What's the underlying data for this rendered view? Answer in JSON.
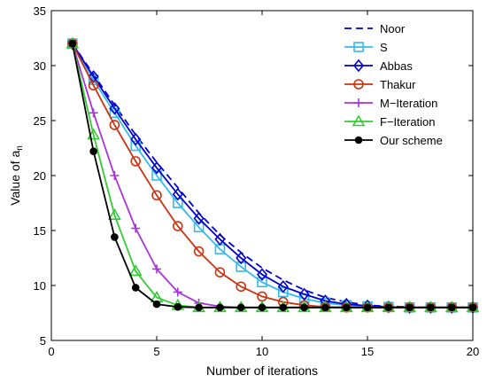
{
  "chart_data": {
    "type": "line",
    "xlabel": "Number of iterations",
    "ylabel_main": "Value of a",
    "ylabel_sub": "n",
    "xlim": [
      0,
      20
    ],
    "ylim": [
      5,
      35
    ],
    "xticks": [
      0,
      5,
      10,
      15,
      20
    ],
    "yticks": [
      5,
      10,
      15,
      20,
      25,
      30,
      35
    ],
    "legend_position": "top-right",
    "grid": false,
    "series": [
      {
        "name": "Noor",
        "color": "#0000e0",
        "dash": "8,5",
        "marker": "none",
        "x": [
          1,
          2,
          3,
          4,
          5,
          6,
          7,
          8,
          9,
          10,
          11,
          12,
          13,
          14,
          15,
          16,
          17,
          18,
          19,
          20
        ],
        "y": [
          32.0,
          29.2,
          26.4,
          23.7,
          21.2,
          18.9,
          16.6,
          14.6,
          13.0,
          11.6,
          10.5,
          9.6,
          8.9,
          8.5,
          8.2,
          8.1,
          8.05,
          8.0,
          8.0,
          8.0
        ]
      },
      {
        "name": "S",
        "color": "#33bbee",
        "dash": "",
        "marker": "square",
        "x": [
          1,
          2,
          3,
          4,
          5,
          6,
          7,
          8,
          9,
          10,
          11,
          12,
          13,
          14,
          15,
          16,
          17,
          18,
          19,
          20
        ],
        "y": [
          32.0,
          28.7,
          25.7,
          22.7,
          20.0,
          17.5,
          15.3,
          13.3,
          11.7,
          10.3,
          9.4,
          8.8,
          8.4,
          8.2,
          8.1,
          8.05,
          8.0,
          8.0,
          8.0,
          8.0
        ]
      },
      {
        "name": "Abbas",
        "color": "#0000cc",
        "dash": "",
        "marker": "diamond",
        "x": [
          1,
          2,
          3,
          4,
          5,
          6,
          7,
          8,
          9,
          10,
          11,
          12,
          13,
          14,
          15,
          16,
          17,
          18,
          19,
          20
        ],
        "y": [
          32.0,
          29.0,
          26.1,
          23.3,
          20.7,
          18.3,
          16.1,
          14.2,
          12.5,
          11.0,
          9.9,
          9.2,
          8.6,
          8.3,
          8.15,
          8.05,
          8.0,
          8.0,
          8.0,
          8.0
        ]
      },
      {
        "name": "Thakur",
        "color": "#cc3311",
        "dash": "",
        "marker": "circle",
        "x": [
          1,
          2,
          3,
          4,
          5,
          6,
          7,
          8,
          9,
          10,
          11,
          12,
          13,
          14,
          15,
          16,
          17,
          18,
          19,
          20
        ],
        "y": [
          32.0,
          28.2,
          24.6,
          21.3,
          18.2,
          15.4,
          13.1,
          11.2,
          9.9,
          9.0,
          8.5,
          8.2,
          8.05,
          8.0,
          8.0,
          8.0,
          8.0,
          8.0,
          8.0,
          8.0
        ]
      },
      {
        "name": "M−Iteration",
        "color": "#aa33dd",
        "dash": "",
        "marker": "plus",
        "x": [
          1,
          2,
          3,
          4,
          5,
          6,
          7,
          8,
          9,
          10,
          11,
          12,
          13,
          14,
          15,
          16,
          17,
          18,
          19,
          20
        ],
        "y": [
          32.0,
          25.7,
          20.0,
          15.2,
          11.5,
          9.4,
          8.4,
          8.1,
          8.0,
          8.0,
          8.0,
          8.0,
          8.0,
          8.0,
          8.0,
          8.0,
          8.0,
          8.0,
          8.0,
          8.0
        ]
      },
      {
        "name": "F−Iteration",
        "color": "#33cc33",
        "dash": "",
        "marker": "triangle",
        "x": [
          1,
          2,
          3,
          4,
          5,
          6,
          7,
          8,
          9,
          10,
          11,
          12,
          13,
          14,
          15,
          16,
          17,
          18,
          19,
          20
        ],
        "y": [
          32.0,
          23.7,
          16.4,
          11.3,
          8.9,
          8.2,
          8.0,
          8.0,
          8.0,
          8.0,
          8.0,
          8.0,
          8.0,
          8.0,
          8.0,
          8.0,
          8.0,
          8.0,
          8.0,
          8.0
        ]
      },
      {
        "name": "Our scheme",
        "color": "#000000",
        "dash": "",
        "marker": "dot",
        "x": [
          1,
          2,
          3,
          4,
          5,
          6,
          7,
          8,
          9,
          10,
          11,
          12,
          13,
          14,
          15,
          16,
          17,
          18,
          19,
          20
        ],
        "y": [
          32.0,
          22.2,
          14.4,
          9.8,
          8.3,
          8.05,
          8.0,
          8.0,
          8.0,
          8.0,
          8.0,
          8.0,
          8.0,
          8.0,
          8.0,
          8.0,
          8.0,
          8.0,
          8.0,
          8.0
        ]
      }
    ]
  }
}
